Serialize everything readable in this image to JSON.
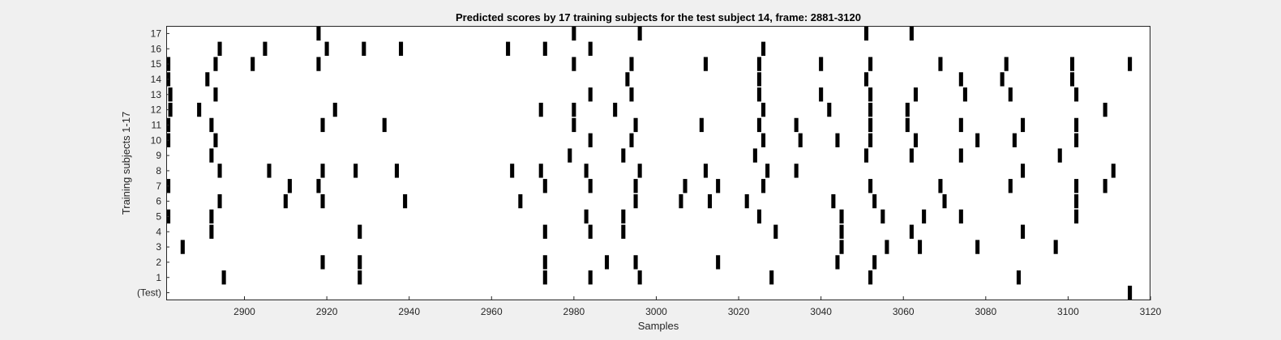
{
  "chart_data": {
    "type": "raster",
    "title": "Predicted scores by 17 training subjects for the test subject 14, frame: 2881-3120",
    "xlabel": "Samples",
    "ylabel": "Training subjects 1-17",
    "xlim": [
      2881,
      3120
    ],
    "xticks": [
      2900,
      2920,
      2940,
      2960,
      2980,
      3000,
      3020,
      3040,
      3060,
      3080,
      3100,
      3120
    ],
    "row_labels": [
      "(Test)",
      "1",
      "2",
      "3",
      "4",
      "5",
      "6",
      "7",
      "8",
      "9",
      "10",
      "11",
      "12",
      "13",
      "14",
      "15",
      "16",
      "17"
    ],
    "grid": false,
    "mark_color": "#000000",
    "rows": [
      {
        "label": "(Test)",
        "events": [
          3115
        ]
      },
      {
        "label": "1",
        "events": [
          2895,
          2928,
          2973,
          2984,
          2996,
          3028,
          3052,
          3088
        ]
      },
      {
        "label": "2",
        "events": [
          2919,
          2928,
          2973,
          2988,
          2995,
          3015,
          3044,
          3053
        ]
      },
      {
        "label": "3",
        "events": [
          2885,
          3045,
          3056,
          3064,
          3078,
          3097
        ]
      },
      {
        "label": "4",
        "events": [
          2892,
          2928,
          2973,
          2984,
          2992,
          3029,
          3045,
          3062,
          3089
        ]
      },
      {
        "label": "5",
        "events": [
          2881,
          2892,
          2983,
          2992,
          3025,
          3045,
          3055,
          3065,
          3074,
          3102
        ]
      },
      {
        "label": "6",
        "events": [
          2894,
          2910,
          2919,
          2939,
          2967,
          2995,
          3006,
          3013,
          3022,
          3043,
          3053,
          3070,
          3102
        ]
      },
      {
        "label": "7",
        "events": [
          2881,
          2911,
          2918,
          2973,
          2984,
          2995,
          3007,
          3015,
          3026,
          3052,
          3069,
          3086,
          3102,
          3109
        ]
      },
      {
        "label": "8",
        "events": [
          2894,
          2906,
          2919,
          2927,
          2937,
          2965,
          2972,
          2983,
          2996,
          3012,
          3027,
          3034,
          3089,
          3111
        ]
      },
      {
        "label": "9",
        "events": [
          2892,
          2979,
          2992,
          3024,
          3051,
          3062,
          3074,
          3098
        ]
      },
      {
        "label": "10",
        "events": [
          2881,
          2893,
          2984,
          2994,
          3026,
          3035,
          3044,
          3052,
          3063,
          3078,
          3087,
          3102
        ]
      },
      {
        "label": "11",
        "events": [
          2881,
          2892,
          2919,
          2934,
          2980,
          2995,
          3011,
          3025,
          3034,
          3052,
          3061,
          3074,
          3089,
          3102
        ]
      },
      {
        "label": "12",
        "events": [
          2882,
          2889,
          2922,
          2972,
          2980,
          2990,
          3026,
          3042,
          3052,
          3061,
          3109
        ]
      },
      {
        "label": "13",
        "events": [
          2882,
          2893,
          2984,
          2994,
          3025,
          3040,
          3052,
          3063,
          3075,
          3086,
          3102
        ]
      },
      {
        "label": "14",
        "events": [
          2881,
          2891,
          2993,
          3025,
          3051,
          3074,
          3084,
          3101
        ]
      },
      {
        "label": "15",
        "events": [
          2881,
          2893,
          2902,
          2918,
          2980,
          2994,
          3012,
          3025,
          3040,
          3052,
          3069,
          3085,
          3101,
          3115
        ]
      },
      {
        "label": "16",
        "events": [
          2894,
          2905,
          2920,
          2929,
          2938,
          2964,
          2973,
          2984,
          3026
        ]
      },
      {
        "label": "17",
        "events": [
          2918,
          2980,
          2996,
          3051,
          3062
        ]
      }
    ]
  }
}
